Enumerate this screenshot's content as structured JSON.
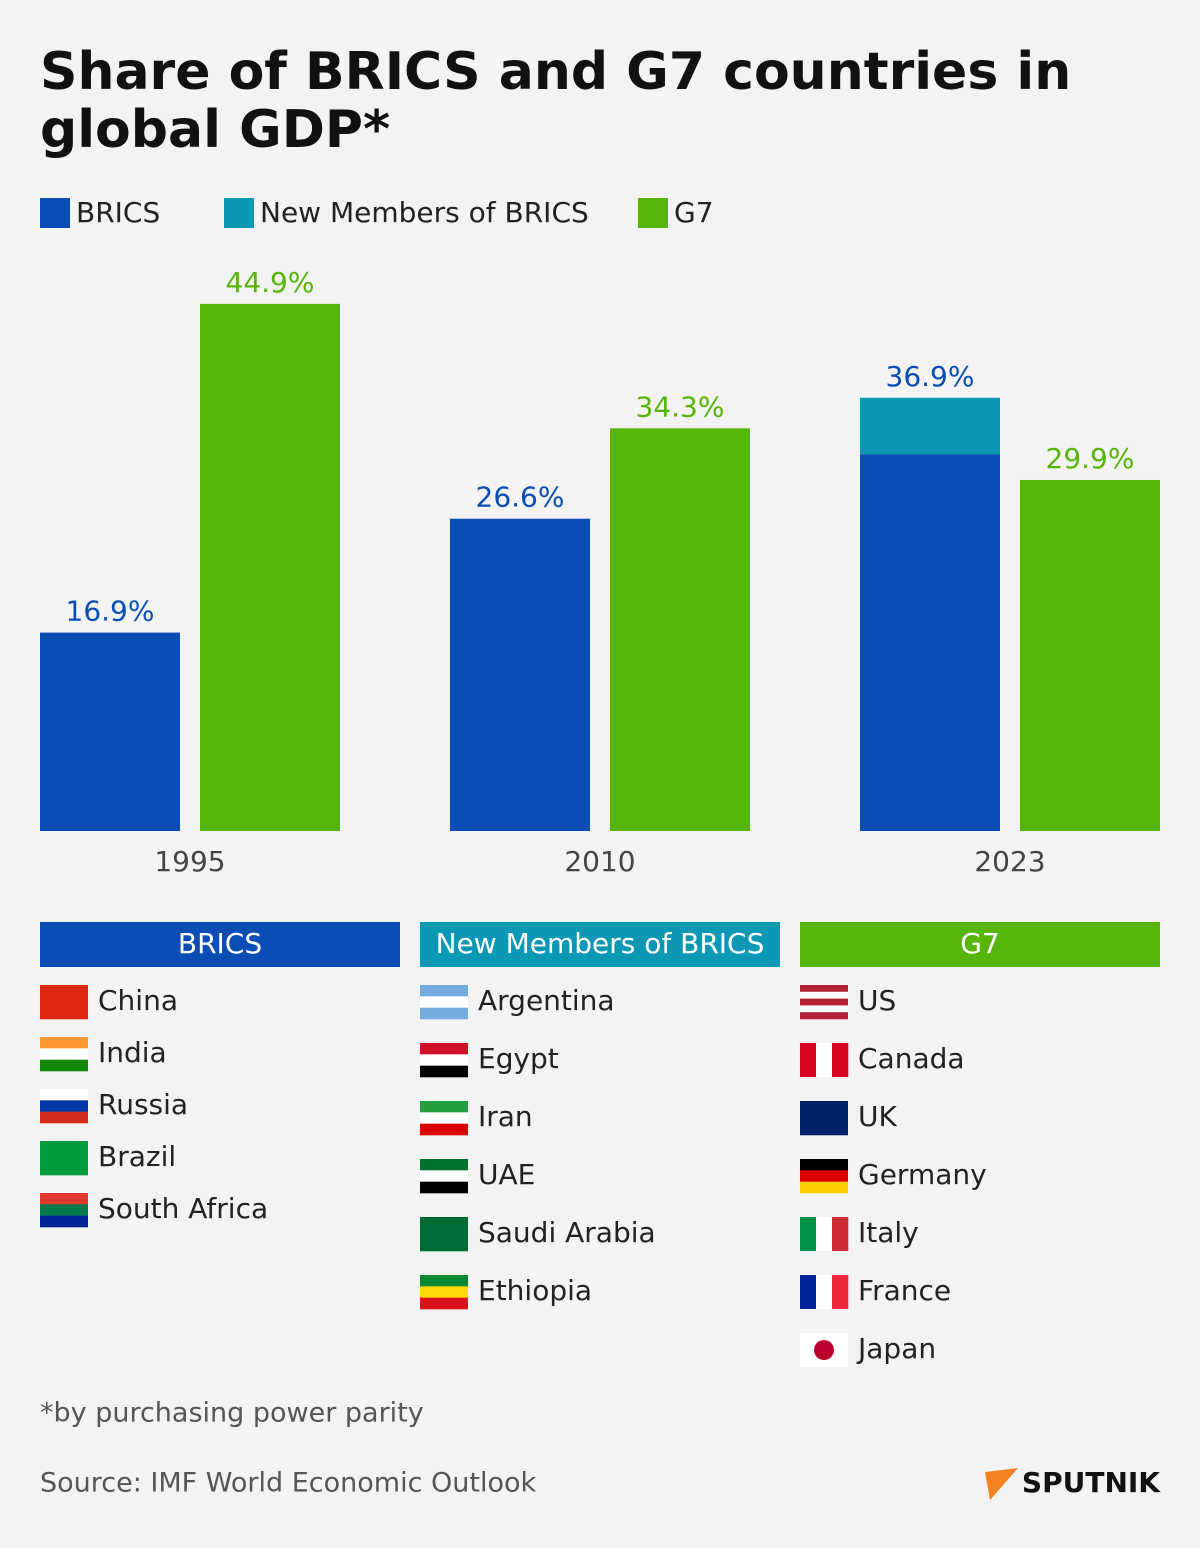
{
  "chart_data": {
    "type": "bar",
    "title": [
      "Share of BRICS and G7 countries in",
      "global GDP*"
    ],
    "categories": [
      "1995",
      "2010",
      "2023"
    ],
    "series": [
      {
        "name": "BRICS",
        "color": "#0a4db5",
        "values": [
          16.9,
          26.6,
          32.1
        ],
        "value_labels": [
          "16.9%",
          "26.6%",
          null
        ],
        "stack": "a"
      },
      {
        "name": "New Members of BRICS",
        "color": "#0a98b5",
        "values": [
          null,
          null,
          4.8
        ],
        "stack": "a"
      },
      {
        "name": "G7",
        "color": "#57b50a",
        "values": [
          44.9,
          34.3,
          29.9
        ],
        "value_labels": [
          "44.9%",
          "34.3%",
          "29.9%"
        ],
        "stack": "b"
      }
    ],
    "stack_totals": [
      null,
      null,
      36.9
    ],
    "stack_total_labels": [
      null,
      null,
      "36.9%"
    ],
    "ylim": [
      0,
      50
    ]
  },
  "country_lists": [
    {
      "countries": [
        "China",
        "India",
        "Russia",
        "Brazil",
        "South Africa"
      ]
    },
    {
      "countries": [
        "Argentina",
        "Egypt",
        "Iran",
        "UAE",
        "Saudi Arabia",
        "Ethiopia"
      ]
    },
    {
      "countries": [
        "US",
        "Canada",
        "UK",
        "Germany",
        "Italy",
        "France",
        "Japan"
      ]
    }
  ],
  "footnote": "*by purchasing power parity",
  "source": "Source: IMF World Economic Outlook",
  "logo": "SPUTNIK"
}
